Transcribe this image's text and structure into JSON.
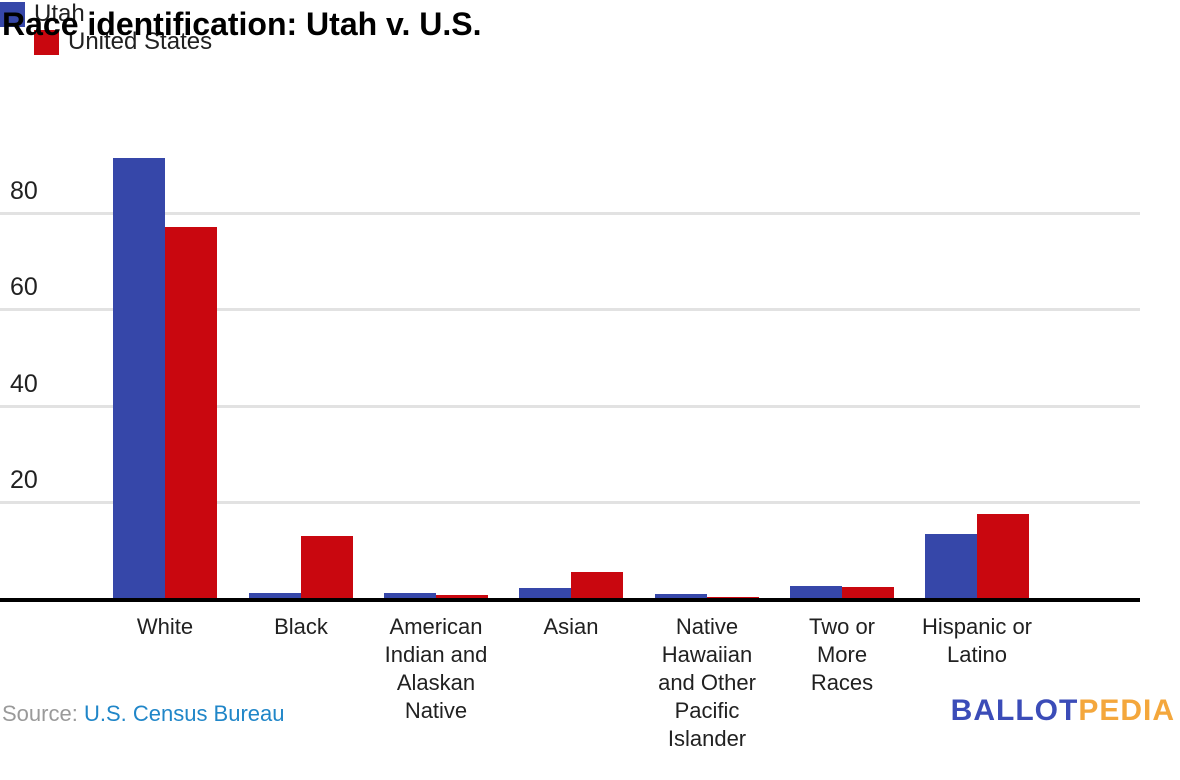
{
  "title": "Race identification: Utah v. U.S.",
  "source": {
    "prefix": "Source:",
    "link_text": "U.S. Census Bureau"
  },
  "logo": {
    "part1": "BALLOT",
    "part2": "PEDIA"
  },
  "colors": {
    "utah_bar": "#3647a9",
    "us_bar": "#c9070f",
    "gridline": "#e2e2e2",
    "axis_line": "#000000",
    "text": "#212121",
    "source_prefix": "#9a9a9a",
    "source_link": "#2086c8",
    "logo_blue": "#3b4cb8",
    "logo_orange": "#f4a73c"
  },
  "chart_data": {
    "type": "bar",
    "title": "Race identification: Utah v. U.S.",
    "categories": [
      "White",
      "Black",
      "American Indian and Alaskan Native",
      "Asian",
      "Native Hawaiian and Other Pacific Islander",
      "Two or More Races",
      "Hispanic or Latino"
    ],
    "tick_label_lines": [
      [
        "White"
      ],
      [
        "Black"
      ],
      [
        "American",
        "Indian and",
        "Alaskan",
        "Native"
      ],
      [
        "Asian"
      ],
      [
        "Native",
        "Hawaiian",
        "and Other",
        "Pacific",
        "Islander"
      ],
      [
        "Two or",
        "More",
        "Races"
      ],
      [
        "Hispanic or",
        "Latino"
      ]
    ],
    "series": [
      {
        "name": "Utah",
        "color": "#3647a9",
        "values": [
          91.5,
          1.0,
          1.1,
          2.0,
          0.9,
          2.5,
          13.2
        ]
      },
      {
        "name": "United States",
        "color": "#c9070f",
        "values": [
          77.1,
          12.9,
          0.7,
          5.5,
          0.2,
          2.3,
          17.5
        ]
      }
    ],
    "unit": "percent",
    "ylim": [
      0,
      100
    ],
    "yticks": [
      20,
      40,
      60,
      80
    ],
    "xlabel": "",
    "ylabel": "",
    "grid": true,
    "legend_position": "top-left"
  }
}
